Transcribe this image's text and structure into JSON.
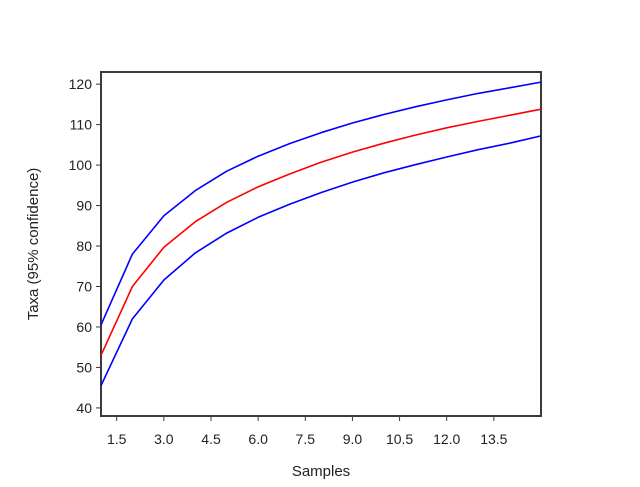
{
  "chart_data": {
    "type": "line",
    "xlabel": "Samples",
    "ylabel": "Taxa (95% confidence)",
    "xlim": [
      1,
      15
    ],
    "ylim": [
      38,
      123
    ],
    "x_ticks": [
      "1.5",
      "3.0",
      "4.5",
      "6.0",
      "7.5",
      "9.0",
      "10.5",
      "12.0",
      "13.5"
    ],
    "y_ticks": [
      "40",
      "50",
      "60",
      "70",
      "80",
      "90",
      "100",
      "110",
      "120"
    ],
    "x": [
      1,
      2,
      3,
      4,
      5,
      6,
      7,
      8,
      9,
      10,
      11,
      12,
      13,
      14,
      15
    ],
    "series": [
      {
        "color": "#0000ff",
        "values": [
          60.5,
          78.0,
          87.5,
          93.7,
          98.5,
          102.2,
          105.3,
          108.0,
          110.4,
          112.5,
          114.4,
          116.1,
          117.7,
          119.1,
          120.5
        ]
      },
      {
        "color": "#ff0000",
        "values": [
          53.0,
          70.0,
          79.7,
          86.0,
          90.8,
          94.6,
          97.8,
          100.7,
          103.2,
          105.4,
          107.4,
          109.2,
          110.8,
          112.3,
          113.8
        ]
      },
      {
        "color": "#0000ff",
        "values": [
          45.5,
          62.0,
          71.6,
          78.3,
          83.2,
          87.1,
          90.3,
          93.2,
          95.8,
          98.1,
          100.1,
          102.0,
          103.8,
          105.4,
          107.2
        ]
      }
    ],
    "grid": false,
    "legend": "none"
  }
}
